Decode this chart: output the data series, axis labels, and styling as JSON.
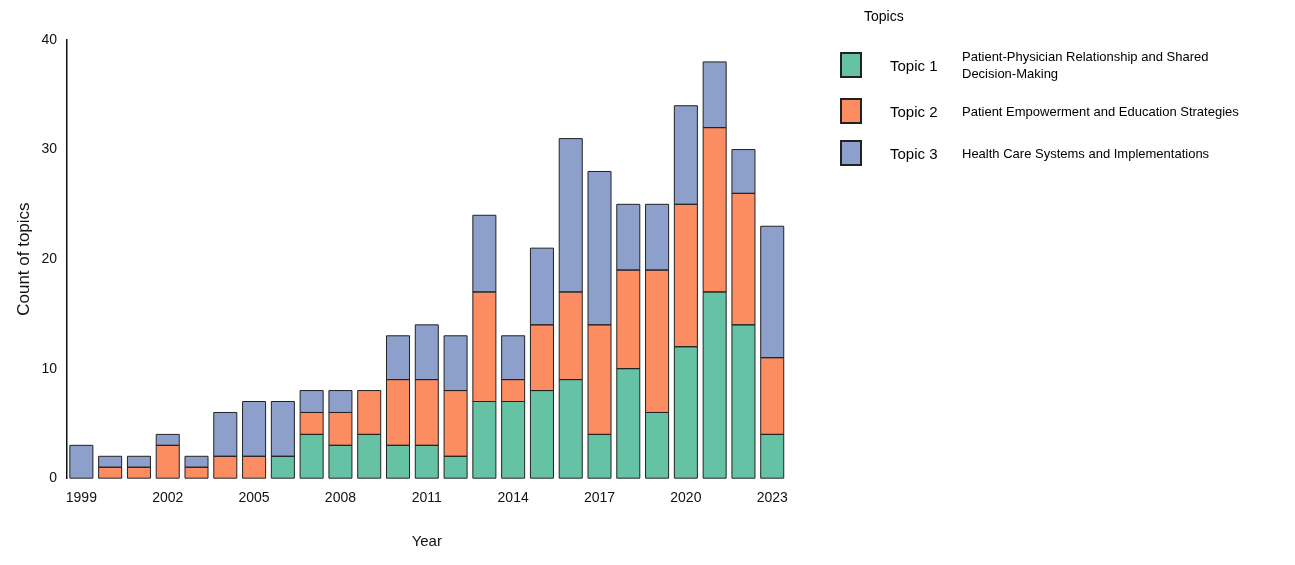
{
  "chart_data": {
    "type": "bar",
    "stacked": true,
    "xlabel": "Year",
    "ylabel": "Count of topics",
    "legend_title": "Topics",
    "legend": "right",
    "grid": false,
    "categories": [
      "1999",
      null,
      null,
      "2002",
      null,
      null,
      "2005",
      null,
      null,
      "2008",
      null,
      null,
      "2011",
      null,
      null,
      "2014",
      null,
      null,
      "2017",
      null,
      null,
      "2020",
      null,
      null,
      "2023"
    ],
    "ylim": [
      0,
      40
    ],
    "yticks": [
      0,
      10,
      20,
      30,
      40
    ],
    "series": [
      {
        "name": "Topic 1",
        "color": "#66c2a5",
        "values": [
          0,
          0,
          0,
          0,
          0,
          0,
          0,
          2,
          4,
          3,
          4,
          3,
          3,
          2,
          7,
          7,
          8,
          9,
          4,
          10,
          6,
          12,
          17,
          14,
          4
        ]
      },
      {
        "name": "Topic 2",
        "color": "#fc8d62",
        "values": [
          0,
          1,
          1,
          3,
          1,
          2,
          2,
          0,
          2,
          3,
          4,
          6,
          6,
          6,
          10,
          2,
          6,
          8,
          10,
          9,
          13,
          13,
          15,
          12,
          7
        ]
      },
      {
        "name": "Topic 3",
        "color": "#8da0cb",
        "values": [
          3,
          1,
          1,
          1,
          1,
          4,
          5,
          5,
          2,
          2,
          0,
          4,
          5,
          5,
          7,
          4,
          7,
          14,
          14,
          6,
          6,
          9,
          6,
          4,
          12
        ]
      }
    ],
    "annotations": [
      "Patient-Physician Relationship and Shared Decision-Making",
      "Patient Empowerment and Education Strategies",
      "Health Care Systems and Implementations"
    ]
  }
}
